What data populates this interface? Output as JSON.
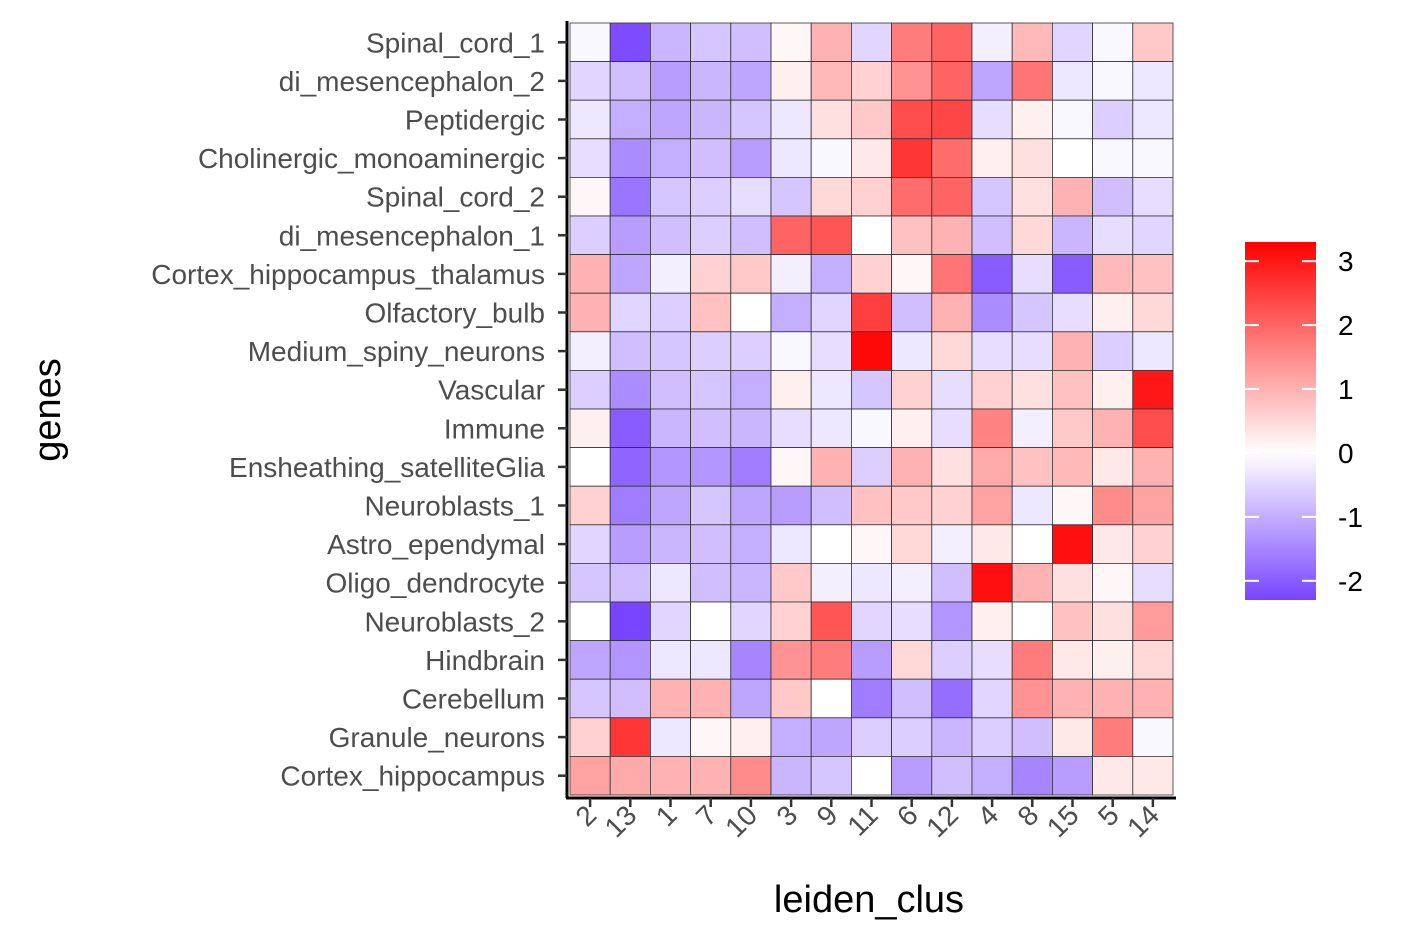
{
  "chart_data": {
    "type": "heatmap",
    "xlabel": "leiden_clus",
    "ylabel": "genes",
    "x_categories": [
      "2",
      "13",
      "1",
      "7",
      "10",
      "3",
      "9",
      "11",
      "6",
      "12",
      "4",
      "8",
      "15",
      "5",
      "14"
    ],
    "y_categories": [
      "Spinal_cord_1",
      "di_mesencephalon_2",
      "Peptidergic",
      "Cholinergic_monoaminergic",
      "Spinal_cord_2",
      "di_mesencephalon_1",
      "Cortex_hippocampus_thalamus",
      "Olfactory_bulb",
      "Medium_spiny_neurons",
      "Vascular",
      "Immune",
      "Ensheathing_satelliteGlia",
      "Neuroblasts_1",
      "Astro_ependymal",
      "Oligo_dendrocyte",
      "Neuroblasts_2",
      "Hindbrain",
      "Cerebellum",
      "Granule_neurons",
      "Cortex_hippocampus"
    ],
    "values": [
      [
        -0.1,
        -2.2,
        -0.9,
        -0.7,
        -0.8,
        0.1,
        1.0,
        -0.5,
        1.7,
        2.0,
        -0.2,
        0.9,
        -0.5,
        -0.1,
        0.7
      ],
      [
        -0.5,
        -0.8,
        -1.2,
        -0.9,
        -1.1,
        0.2,
        0.9,
        0.6,
        1.4,
        2.0,
        -1.1,
        1.8,
        -0.3,
        -0.1,
        -0.3
      ],
      [
        -0.3,
        -1.0,
        -1.1,
        -0.9,
        -0.7,
        -0.3,
        0.4,
        0.7,
        2.3,
        2.4,
        -0.4,
        0.2,
        -0.1,
        -0.6,
        -0.3
      ],
      [
        -0.4,
        -1.4,
        -1.0,
        -0.8,
        -1.2,
        -0.3,
        -0.1,
        0.3,
        2.6,
        1.9,
        0.2,
        0.4,
        0.0,
        -0.1,
        -0.1
      ],
      [
        0.1,
        -1.7,
        -0.7,
        -0.6,
        -0.4,
        -0.7,
        0.5,
        0.6,
        1.9,
        2.0,
        -0.7,
        0.4,
        1.0,
        -0.8,
        -0.4
      ],
      [
        -0.6,
        -1.2,
        -0.8,
        -0.6,
        -0.8,
        2.0,
        2.2,
        0.0,
        0.8,
        1.0,
        -0.8,
        0.5,
        -0.9,
        -0.4,
        -0.5
      ],
      [
        1.0,
        -1.1,
        -0.2,
        0.6,
        0.7,
        -0.2,
        -1.0,
        0.6,
        0.1,
        1.8,
        -2.0,
        -0.4,
        -2.0,
        0.9,
        0.8
      ],
      [
        1.0,
        -0.5,
        -0.6,
        0.8,
        0.0,
        -1.0,
        -0.5,
        2.5,
        -0.8,
        1.0,
        -1.4,
        -0.7,
        -0.4,
        0.2,
        0.5
      ],
      [
        -0.2,
        -0.8,
        -0.7,
        -0.6,
        -0.6,
        -0.1,
        -0.4,
        3.2,
        -0.3,
        0.5,
        -0.4,
        -0.4,
        1.0,
        -0.6,
        -0.3
      ],
      [
        -0.6,
        -1.4,
        -0.8,
        -0.7,
        -1.0,
        0.2,
        -0.3,
        -0.7,
        0.6,
        -0.4,
        0.6,
        0.4,
        0.8,
        0.2,
        3.0
      ],
      [
        0.2,
        -2.0,
        -0.9,
        -0.8,
        -0.9,
        -0.4,
        -0.3,
        -0.1,
        0.2,
        -0.4,
        1.6,
        -0.2,
        0.7,
        1.0,
        2.3
      ],
      [
        0.0,
        -1.9,
        -1.3,
        -1.3,
        -1.6,
        0.1,
        1.0,
        -0.6,
        1.0,
        0.4,
        1.1,
        0.8,
        0.9,
        0.3,
        1.0
      ],
      [
        0.6,
        -1.6,
        -1.1,
        -0.7,
        -1.1,
        -1.2,
        -0.8,
        0.8,
        0.7,
        0.6,
        1.2,
        -0.3,
        0.1,
        1.5,
        1.2
      ],
      [
        -0.5,
        -1.2,
        -0.9,
        -0.8,
        -1.0,
        -0.3,
        0.0,
        0.1,
        0.5,
        -0.2,
        0.3,
        0.0,
        3.1,
        0.3,
        0.6
      ],
      [
        -0.7,
        -0.8,
        -0.3,
        -0.8,
        -0.9,
        0.7,
        -0.2,
        -0.3,
        -0.2,
        -0.8,
        3.1,
        1.0,
        0.4,
        0.1,
        -0.4
      ],
      [
        0.0,
        -2.3,
        -0.5,
        0.0,
        -0.5,
        0.6,
        2.2,
        -0.5,
        -0.4,
        -1.3,
        0.2,
        0.0,
        0.8,
        0.4,
        1.3
      ],
      [
        -1.1,
        -1.3,
        -0.3,
        -0.3,
        -1.5,
        1.4,
        1.7,
        -1.2,
        0.5,
        -0.6,
        -0.4,
        1.7,
        0.3,
        0.2,
        0.5
      ],
      [
        -0.7,
        -0.8,
        1.0,
        1.0,
        -1.1,
        0.7,
        0.0,
        -1.6,
        -0.8,
        -1.8,
        -0.5,
        1.4,
        1.0,
        1.0,
        1.0
      ],
      [
        0.6,
        2.6,
        -0.3,
        0.1,
        0.2,
        -1.0,
        -1.1,
        -0.6,
        -0.6,
        -0.9,
        -0.6,
        -0.8,
        0.3,
        1.7,
        -0.1
      ],
      [
        1.2,
        1.1,
        1.0,
        1.0,
        1.5,
        -0.9,
        -0.7,
        0.0,
        -1.2,
        -0.8,
        -1.0,
        -1.5,
        -1.2,
        0.3,
        0.3
      ]
    ],
    "colorbar": {
      "ticks": [
        3,
        2,
        1,
        0,
        -1,
        -2
      ],
      "tick_labels": [
        "3",
        "2",
        "1",
        "0",
        "-1",
        "-2"
      ],
      "min": -2.3,
      "max": 3.3,
      "colors": {
        "low": "#7744ff",
        "mid": "#ffffff",
        "high": "#ff0000"
      }
    },
    "grid": false,
    "legend": "right"
  }
}
